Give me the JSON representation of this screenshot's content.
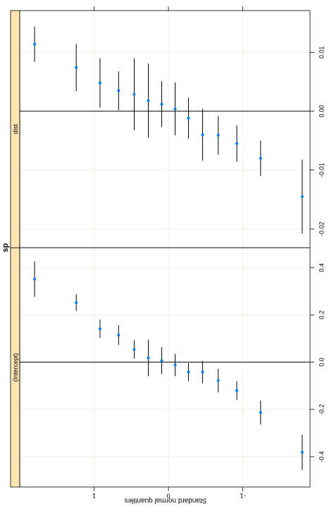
{
  "chart_data": {
    "type": "dotplot",
    "title": "sp",
    "xlabel": "Standard normal quantiles",
    "xlim": [
      2.0,
      -1.905
    ],
    "xticks": [
      -1,
      0,
      1
    ],
    "grid": true,
    "point_color": "#0080ff",
    "bar_color": "#000000",
    "strip_color": "#ffe5b2",
    "x": [
      1.8,
      1.24,
      0.92,
      0.67,
      0.46,
      0.27,
      0.09,
      -0.09,
      -0.27,
      -0.46,
      -0.67,
      -0.92,
      -1.24,
      -1.8
    ],
    "panels": [
      {
        "title": "(Intercept)",
        "ylim": [
          -0.528,
          0.484
        ],
        "yticks": [
          -0.4,
          -0.2,
          {
            "value": 0,
            "label": "0.0"
          },
          0.2,
          0.4
        ],
        "values": [
          0.351,
          0.252,
          0.141,
          0.114,
          0.054,
          0.018,
          0.006,
          -0.012,
          -0.042,
          -0.042,
          -0.078,
          -0.12,
          -0.213,
          -0.381
        ],
        "errors": [
          0.075,
          0.035,
          0.039,
          0.042,
          0.039,
          0.077,
          0.057,
          0.047,
          0.038,
          0.047,
          0.05,
          0.04,
          0.051,
          0.075
        ]
      },
      {
        "title": "dist",
        "ylim": [
          -0.0232,
          0.0171
        ],
        "yticks": [
          -0.02,
          -0.01,
          {
            "value": 0,
            "label": "0.00"
          },
          0.01
        ],
        "values": [
          0.01138,
          0.00743,
          0.00479,
          0.00347,
          0.00287,
          0.0018,
          0.0012,
          0.0004,
          -0.0012,
          -0.004,
          -0.0041,
          -0.0055,
          -0.008,
          -0.0145
        ],
        "errors": [
          0.003,
          0.004,
          0.0042,
          0.0033,
          0.0061,
          0.0063,
          0.0039,
          0.0045,
          0.0035,
          0.0044,
          0.0033,
          0.0031,
          0.003,
          0.0063
        ]
      }
    ]
  }
}
